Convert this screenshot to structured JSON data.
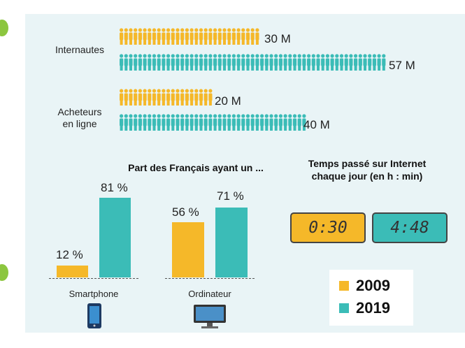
{
  "colors": {
    "y2009": "#f5b829",
    "y2019": "#3bbcb7",
    "panel": "#e9f4f6"
  },
  "pictogram": {
    "rows": [
      {
        "label": [
          "Internautes"
        ],
        "v2009": "30 M",
        "v2019": "57 M",
        "n2009": 30,
        "n2019": 57
      },
      {
        "label": [
          "Acheteurs",
          "en ligne"
        ],
        "v2009": "20 M",
        "v2019": "40 M",
        "n2009": 20,
        "n2019": 40
      }
    ]
  },
  "bars": {
    "title": "Part des Français ayant un ...",
    "groups": [
      {
        "name": "Smartphone",
        "icon": "smartphone-icon",
        "p2009": "12 %",
        "p2019": "81 %"
      },
      {
        "name": "Ordinateur",
        "icon": "computer-monitor-icon",
        "p2009": "56 %",
        "p2019": "71 %"
      }
    ]
  },
  "time": {
    "title": [
      "Temps passé sur Internet",
      "chaque jour (en h : min)"
    ],
    "t2009": "0:30",
    "t2019": "4:48"
  },
  "legend": [
    {
      "label": "2009",
      "color": "#f5b829"
    },
    {
      "label": "2019",
      "color": "#3bbcb7"
    }
  ],
  "chart_data": [
    {
      "type": "bar",
      "categories": [
        "Internautes",
        "Acheteurs en ligne"
      ],
      "series": [
        {
          "name": "2009",
          "values": [
            30,
            20
          ]
        },
        {
          "name": "2019",
          "values": [
            57,
            40
          ]
        }
      ],
      "unit": "M"
    },
    {
      "type": "bar",
      "title": "Part des Français ayant un ...",
      "categories": [
        "Smartphone",
        "Ordinateur"
      ],
      "series": [
        {
          "name": "2009",
          "values": [
            12,
            56
          ]
        },
        {
          "name": "2019",
          "values": [
            81,
            71
          ]
        }
      ],
      "unit": "%"
    },
    {
      "type": "table",
      "title": "Temps passé sur Internet chaque jour (en h : min)",
      "rows": [
        {
          "year": "2009",
          "value": "0:30"
        },
        {
          "year": "2019",
          "value": "4:48"
        }
      ]
    }
  ]
}
